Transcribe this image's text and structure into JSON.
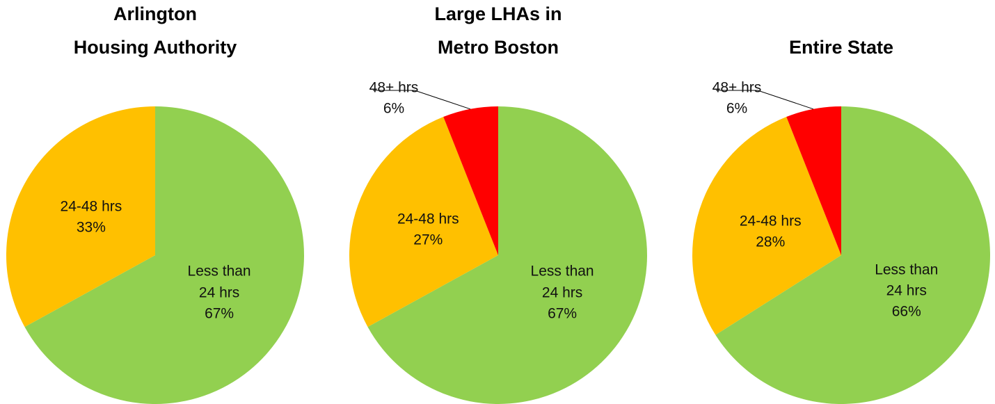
{
  "chart_data": [
    {
      "type": "pie",
      "title": [
        "Arlington",
        "Housing Authority"
      ],
      "categories": [
        "Less than 24 hrs",
        "24-48 hrs"
      ],
      "values": [
        67,
        33
      ],
      "value_labels": [
        "67%",
        "33%"
      ],
      "colors": [
        "#92d050",
        "#ffc000"
      ]
    },
    {
      "type": "pie",
      "title": [
        "Large LHAs in",
        "Metro Boston"
      ],
      "categories": [
        "Less than 24 hrs",
        "24-48 hrs",
        "48+ hrs"
      ],
      "values": [
        67,
        27,
        6
      ],
      "value_labels": [
        "67%",
        "27%",
        "6%"
      ],
      "colors": [
        "#92d050",
        "#ffc000",
        "#ff0000"
      ]
    },
    {
      "type": "pie",
      "title": [
        "Entire State"
      ],
      "categories": [
        "Less than 24 hrs",
        "24-48 hrs",
        "48+ hrs"
      ],
      "values": [
        66,
        28,
        6
      ],
      "value_labels": [
        "66%",
        "28%",
        "6%"
      ],
      "colors": [
        "#92d050",
        "#ffc000",
        "#ff0000"
      ]
    }
  ]
}
